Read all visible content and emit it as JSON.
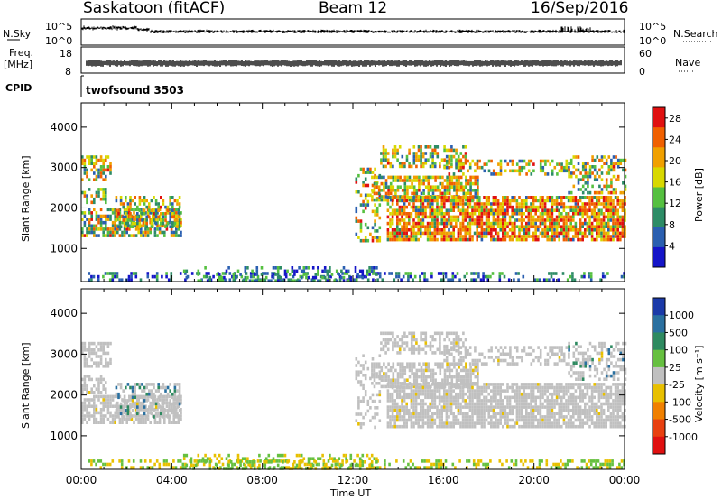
{
  "header": {
    "station": "Saskatoon (fitACF)",
    "beam": "Beam 12",
    "date": "16/Sep/2016"
  },
  "strips": {
    "nsky_label": "N.Sky",
    "nsky_ticks": [
      "10^5",
      "10^0"
    ],
    "nsearch_label": "N.Search",
    "nsearch_ticks": [
      "10^5",
      "10^0"
    ],
    "freq_label": "Freq.",
    "freq_unit": "[MHz]",
    "freq_ticks": [
      "18",
      "8"
    ],
    "nave_label": "Nave",
    "nave_ticks": [
      "60",
      "0"
    ],
    "cpid_label": "CPID",
    "cpid_value": "twofsound 3503"
  },
  "colors": {
    "power_scale": [
      "#1515c8",
      "#2a5fb0",
      "#2d8c66",
      "#55c040",
      "#d8d800",
      "#f0a000",
      "#f06000",
      "#e01010"
    ],
    "velocity_scale": [
      "#1b3aa8",
      "#2a70a0",
      "#2e8a60",
      "#66c040",
      "#c0c0c0",
      "#e8c000",
      "#f08000",
      "#e84010",
      "#e01010"
    ]
  },
  "chart_data": [
    {
      "type": "heatmap",
      "name": "power",
      "xlabel": "",
      "ylabel": "Slant Range [km]",
      "x_ticks": [
        "00:00",
        "04:00",
        "08:00",
        "12:00",
        "16:00",
        "20:00",
        "00:00"
      ],
      "y_ticks": [
        "1000",
        "2000",
        "3000",
        "4000"
      ],
      "ylim": [
        180,
        4600
      ],
      "xlim_hours": [
        0,
        24
      ],
      "colorbar_label": "Power [dB]",
      "colorbar_ticks": [
        "4",
        "8",
        "12",
        "16",
        "20",
        "24",
        "28"
      ],
      "colorbar_range": [
        0,
        30
      ]
    },
    {
      "type": "heatmap",
      "name": "velocity",
      "xlabel": "Time UT",
      "ylabel": "Slant Range [km]",
      "x_ticks": [
        "00:00",
        "04:00",
        "08:00",
        "12:00",
        "16:00",
        "20:00",
        "00:00"
      ],
      "y_ticks": [
        "1000",
        "2000",
        "3000",
        "4000"
      ],
      "ylim": [
        180,
        4600
      ],
      "xlim_hours": [
        0,
        24
      ],
      "colorbar_label": "Velocity [m s⁻¹]",
      "colorbar_ticks": [
        "1000",
        "500",
        "100",
        "25",
        "-25",
        "-100",
        "-500",
        "-1000"
      ]
    }
  ]
}
